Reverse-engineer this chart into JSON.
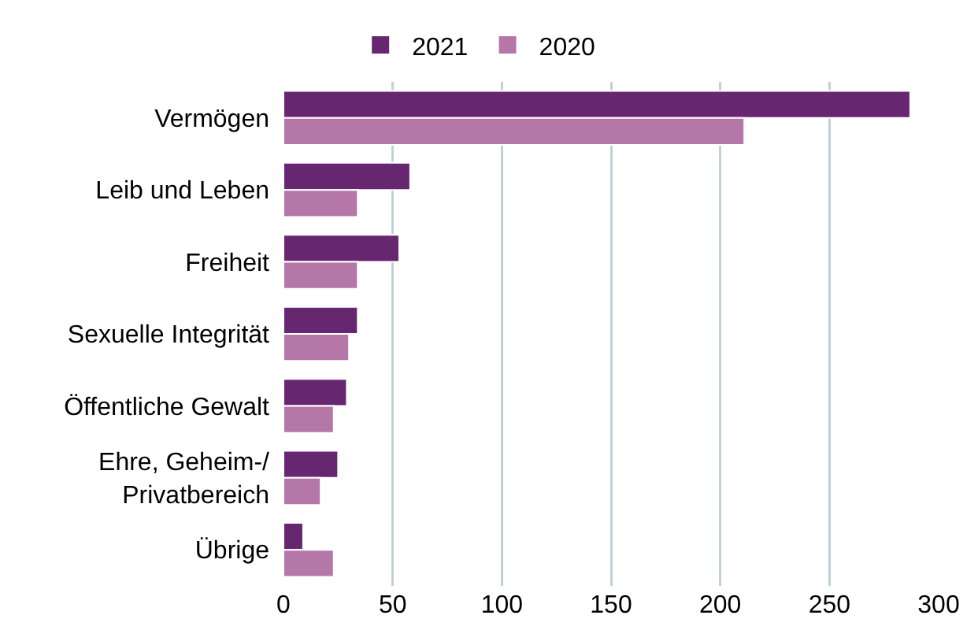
{
  "chart_data": {
    "type": "bar",
    "orientation": "horizontal",
    "categories": [
      "Vermögen",
      "Leib und Leben",
      "Freiheit",
      "Sexuelle Integrität",
      "Öffentliche Gewalt",
      "Ehre, Geheim-/\nPrivatbereich",
      "Übrige"
    ],
    "series": [
      {
        "name": "2021",
        "color": "#662770",
        "values": [
          287,
          58,
          53,
          34,
          29,
          25,
          9
        ]
      },
      {
        "name": "2020",
        "color": "#b576a8",
        "values": [
          211,
          34,
          34,
          30,
          23,
          17,
          23
        ]
      }
    ],
    "xlim": [
      0,
      300
    ],
    "xticks": [
      0,
      50,
      100,
      150,
      200,
      250,
      300
    ],
    "grid": "x",
    "legend": "top"
  }
}
